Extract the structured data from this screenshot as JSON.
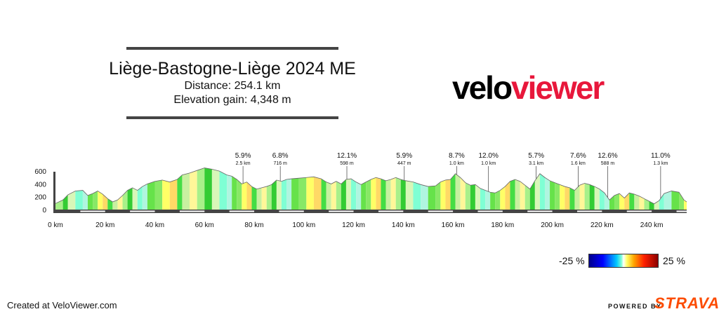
{
  "title": "Liège-Bastogne-Liège 2024 ME",
  "distance": "Distance: 254.1 km",
  "elevation_gain": "Elevation gain: 4,348 m",
  "logo": {
    "part1": "velo",
    "part2": "viewer"
  },
  "credit": "Created at VeloViewer.com",
  "powered_by": "POWERED BY",
  "strava": "STRAVA",
  "legend": {
    "min": "-25 %",
    "max": "25 %"
  },
  "colors": {
    "brand_red": "#e8173b",
    "strava_orange": "#fc4c02"
  },
  "chart_data": {
    "type": "area",
    "xlabel": "",
    "ylabel": "",
    "xlim": [
      0,
      254.1
    ],
    "ylim": [
      0,
      650
    ],
    "x_ticks": [
      "0 km",
      "20 km",
      "40 km",
      "60 km",
      "80 km",
      "100 km",
      "120 km",
      "140 km",
      "160 km",
      "180 km",
      "200 km",
      "220 km",
      "240 km"
    ],
    "y_ticks": [
      "0",
      "200",
      "400",
      "600"
    ],
    "profile": [
      [
        0,
        95
      ],
      [
        3,
        150
      ],
      [
        5,
        230
      ],
      [
        8,
        290
      ],
      [
        11,
        300
      ],
      [
        13,
        220
      ],
      [
        15,
        250
      ],
      [
        17,
        290
      ],
      [
        19,
        240
      ],
      [
        21,
        170
      ],
      [
        23,
        120
      ],
      [
        25,
        150
      ],
      [
        27,
        220
      ],
      [
        29,
        300
      ],
      [
        31,
        340
      ],
      [
        33,
        300
      ],
      [
        35,
        360
      ],
      [
        37,
        400
      ],
      [
        40,
        440
      ],
      [
        43,
        460
      ],
      [
        46,
        430
      ],
      [
        49,
        470
      ],
      [
        51,
        540
      ],
      [
        54,
        570
      ],
      [
        57,
        610
      ],
      [
        60,
        650
      ],
      [
        63,
        630
      ],
      [
        66,
        600
      ],
      [
        69,
        540
      ],
      [
        71,
        520
      ],
      [
        73,
        470
      ],
      [
        75,
        400
      ],
      [
        77,
        430
      ],
      [
        79,
        360
      ],
      [
        81,
        320
      ],
      [
        83,
        340
      ],
      [
        85,
        360
      ],
      [
        87,
        390
      ],
      [
        89,
        460
      ],
      [
        91,
        440
      ],
      [
        93,
        470
      ],
      [
        95,
        480
      ],
      [
        98,
        490
      ],
      [
        101,
        500
      ],
      [
        104,
        510
      ],
      [
        107,
        480
      ],
      [
        109,
        430
      ],
      [
        111,
        400
      ],
      [
        113,
        440
      ],
      [
        115,
        400
      ],
      [
        117,
        470
      ],
      [
        119,
        480
      ],
      [
        121,
        430
      ],
      [
        123,
        390
      ],
      [
        125,
        430
      ],
      [
        127,
        470
      ],
      [
        129,
        500
      ],
      [
        131,
        480
      ],
      [
        133,
        450
      ],
      [
        135,
        470
      ],
      [
        137,
        500
      ],
      [
        139,
        470
      ],
      [
        141,
        450
      ],
      [
        144,
        430
      ],
      [
        147,
        390
      ],
      [
        150,
        360
      ],
      [
        153,
        370
      ],
      [
        155,
        430
      ],
      [
        157,
        460
      ],
      [
        159,
        470
      ],
      [
        161,
        560
      ],
      [
        163,
        500
      ],
      [
        165,
        420
      ],
      [
        167,
        380
      ],
      [
        169,
        390
      ],
      [
        171,
        330
      ],
      [
        173,
        300
      ],
      [
        175,
        270
      ],
      [
        177,
        260
      ],
      [
        179,
        300
      ],
      [
        181,
        360
      ],
      [
        183,
        440
      ],
      [
        185,
        470
      ],
      [
        187,
        440
      ],
      [
        189,
        380
      ],
      [
        191,
        320
      ],
      [
        193,
        450
      ],
      [
        195,
        560
      ],
      [
        197,
        500
      ],
      [
        199,
        450
      ],
      [
        201,
        420
      ],
      [
        203,
        390
      ],
      [
        205,
        360
      ],
      [
        207,
        340
      ],
      [
        209,
        300
      ],
      [
        211,
        380
      ],
      [
        213,
        410
      ],
      [
        215,
        390
      ],
      [
        217,
        360
      ],
      [
        219,
        320
      ],
      [
        221,
        260
      ],
      [
        223,
        150
      ],
      [
        225,
        220
      ],
      [
        227,
        250
      ],
      [
        229,
        180
      ],
      [
        231,
        260
      ],
      [
        233,
        240
      ],
      [
        235,
        210
      ],
      [
        237,
        170
      ],
      [
        239,
        130
      ],
      [
        241,
        90
      ],
      [
        243,
        140
      ],
      [
        245,
        250
      ],
      [
        248,
        290
      ],
      [
        251,
        270
      ],
      [
        253,
        150
      ],
      [
        254.1,
        120
      ]
    ],
    "segment_colors": [
      "#7fffd4",
      "#c8f0a0",
      "#66e24a",
      "#a8f08a",
      "#ffff66",
      "#d8f7b8",
      "#44dd44",
      "#b0f5e0",
      "#fff799",
      "#88e866",
      "#33cc33",
      "#ffd966"
    ],
    "climbs": [
      {
        "x": 75.5,
        "grade": "5.9%",
        "length": "2.5 km"
      },
      {
        "x": 90.5,
        "grade": "6.8%",
        "length": "716 m"
      },
      {
        "x": 117.3,
        "grade": "12.1%",
        "length": "598 m"
      },
      {
        "x": 140.4,
        "grade": "5.9%",
        "length": "447 m"
      },
      {
        "x": 161.5,
        "grade": "8.7%",
        "length": "1.0 km"
      },
      {
        "x": 174.3,
        "grade": "12.0%",
        "length": "1.0 km"
      },
      {
        "x": 193.5,
        "grade": "5.7%",
        "length": "3.1 km"
      },
      {
        "x": 210.4,
        "grade": "7.6%",
        "length": "1.6 km"
      },
      {
        "x": 222.3,
        "grade": "12.6%",
        "length": "588 m"
      },
      {
        "x": 243.6,
        "grade": "11.0%",
        "length": "1.3 km"
      }
    ]
  }
}
